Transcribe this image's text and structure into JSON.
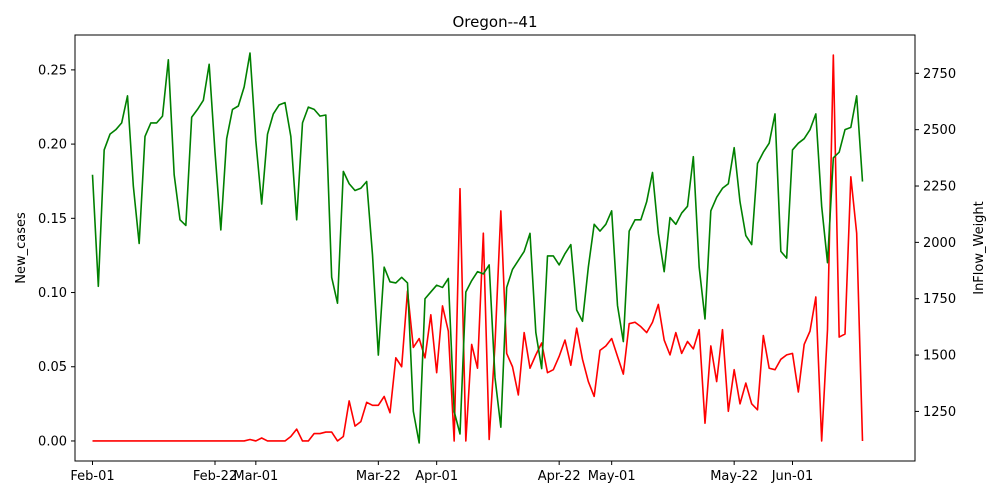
{
  "chart_data": {
    "type": "line",
    "title": "Oregon--41",
    "ylabel_left": "New_cases",
    "ylabel_right": "InFlow_Weight",
    "x_start_date": "2022-02-01",
    "x_end_date": "2022-06-19",
    "xlim_days": [
      -3,
      141
    ],
    "ylim_left": [
      -0.0135,
      0.2735
    ],
    "ylim_right": [
      1030,
      2920
    ],
    "x_ticks": [
      {
        "label": "Feb-01",
        "day": 0
      },
      {
        "label": "Feb-22",
        "day": 21
      },
      {
        "label": "Mar-01",
        "day": 28
      },
      {
        "label": "Mar-22",
        "day": 49
      },
      {
        "label": "Apr-01",
        "day": 59
      },
      {
        "label": "Apr-22",
        "day": 80
      },
      {
        "label": "May-01",
        "day": 89
      },
      {
        "label": "May-22",
        "day": 110
      },
      {
        "label": "Jun-01",
        "day": 120
      }
    ],
    "y_ticks_left": [
      {
        "label": "0.00",
        "value": 0.0
      },
      {
        "label": "0.05",
        "value": 0.05
      },
      {
        "label": "0.10",
        "value": 0.1
      },
      {
        "label": "0.15",
        "value": 0.15
      },
      {
        "label": "0.20",
        "value": 0.2
      },
      {
        "label": "0.25",
        "value": 0.25
      }
    ],
    "y_ticks_right": [
      {
        "label": "1250",
        "value": 1250
      },
      {
        "label": "1500",
        "value": 1500
      },
      {
        "label": "1750",
        "value": 1750
      },
      {
        "label": "2000",
        "value": 2000
      },
      {
        "label": "2250",
        "value": 2250
      },
      {
        "label": "2500",
        "value": 2500
      },
      {
        "label": "2750",
        "value": 2750
      }
    ],
    "grid": false,
    "series": [
      {
        "axis": "left",
        "color": "#ff0000",
        "values": [
          0.0,
          0.0,
          0.0,
          0.0,
          0.0,
          0.0,
          0.0,
          0.0,
          0.0,
          0.0,
          0.0,
          0.0,
          0.0,
          0.0,
          0.0,
          0.0,
          0.0,
          0.0,
          0.0,
          0.0,
          0.0,
          0.0,
          0.0,
          0.0,
          0.0,
          0.0,
          0.0,
          0.001,
          0.0,
          0.002,
          0.0,
          0.0,
          0.0,
          0.0,
          0.003,
          0.008,
          0.0,
          0.0,
          0.005,
          0.005,
          0.006,
          0.006,
          0.0,
          0.003,
          0.027,
          0.01,
          0.013,
          0.026,
          0.024,
          0.024,
          0.03,
          0.019,
          0.056,
          0.05,
          0.101,
          0.063,
          0.069,
          0.056,
          0.085,
          0.046,
          0.091,
          0.074,
          0.0,
          0.17,
          0.0,
          0.065,
          0.049,
          0.14,
          0.001,
          0.065,
          0.155,
          0.059,
          0.05,
          0.031,
          0.073,
          0.049,
          0.058,
          0.066,
          0.046,
          0.048,
          0.057,
          0.068,
          0.051,
          0.076,
          0.055,
          0.04,
          0.03,
          0.061,
          0.064,
          0.069,
          0.057,
          0.045,
          0.079,
          0.08,
          0.077,
          0.073,
          0.08,
          0.092,
          0.068,
          0.058,
          0.073,
          0.059,
          0.067,
          0.062,
          0.075,
          0.012,
          0.064,
          0.04,
          0.075,
          0.02,
          0.048,
          0.025,
          0.039,
          0.025,
          0.021,
          0.071,
          0.049,
          0.048,
          0.055,
          0.058,
          0.059,
          0.033,
          0.065,
          0.074,
          0.097,
          0.0,
          0.075,
          0.26,
          0.07,
          0.072,
          0.178,
          0.14,
          0.0
        ]
      },
      {
        "axis": "right",
        "color": "#008000",
        "values": [
          2300,
          1805,
          2410,
          2480,
          2500,
          2530,
          2650,
          2250,
          1995,
          2470,
          2530,
          2530,
          2560,
          2810,
          2300,
          2100,
          2075,
          2555,
          2590,
          2630,
          2790,
          2400,
          2055,
          2460,
          2590,
          2605,
          2690,
          2840,
          2450,
          2170,
          2480,
          2570,
          2610,
          2620,
          2470,
          2100,
          2530,
          2600,
          2590,
          2560,
          2565,
          1845,
          1730,
          2315,
          2260,
          2230,
          2240,
          2270,
          1945,
          1500,
          1890,
          1825,
          1820,
          1845,
          1820,
          1250,
          1110,
          1750,
          1780,
          1810,
          1800,
          1840,
          1250,
          1150,
          1780,
          1830,
          1870,
          1860,
          1900,
          1400,
          1180,
          1800,
          1880,
          1920,
          1960,
          2040,
          1600,
          1440,
          1940,
          1940,
          1900,
          1950,
          1990,
          1700,
          1650,
          1890,
          2080,
          2050,
          2080,
          2140,
          1720,
          1560,
          2050,
          2100,
          2100,
          2180,
          2310,
          2040,
          1870,
          2110,
          2080,
          2130,
          2160,
          2380,
          1890,
          1660,
          2140,
          2200,
          2240,
          2260,
          2420,
          2180,
          2030,
          1990,
          2350,
          2400,
          2440,
          2570,
          1960,
          1930,
          2410,
          2440,
          2460,
          2500,
          2570,
          2160,
          1910,
          2375,
          2400,
          2500,
          2510,
          2650,
          2270
        ]
      }
    ]
  }
}
